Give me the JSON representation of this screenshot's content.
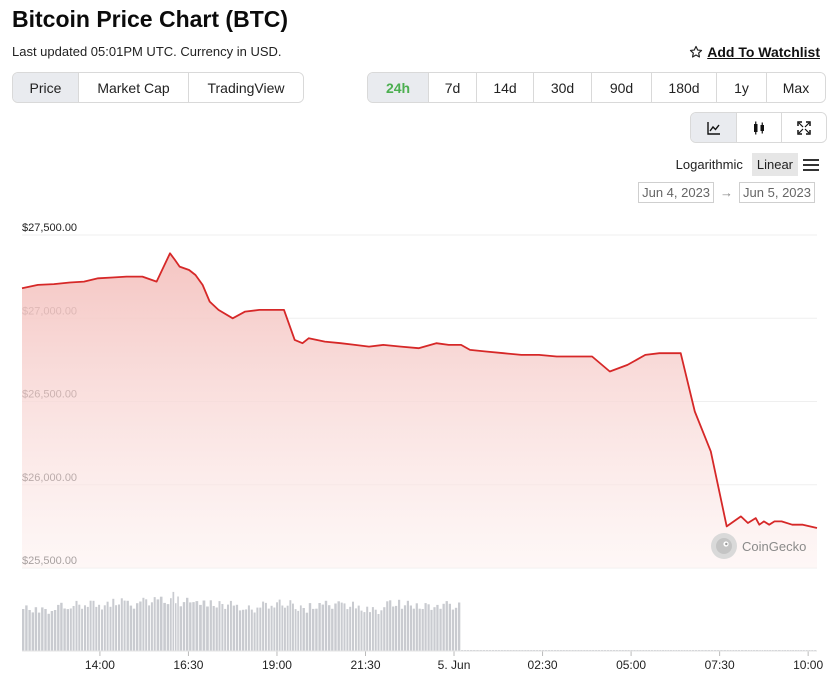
{
  "header": {
    "title": "Bitcoin Price Chart (BTC)",
    "subtitle": "Last updated 05:01PM UTC. Currency in USD.",
    "watchlist_label": "Add To Watchlist"
  },
  "view_tabs": [
    "Price",
    "Market Cap",
    "TradingView"
  ],
  "range_tabs": [
    "24h",
    "7d",
    "14d",
    "30d",
    "90d",
    "180d",
    "1y",
    "Max"
  ],
  "chart_type_buttons": [
    "line-chart-icon",
    "candlestick-icon",
    "fullscreen-icon"
  ],
  "scale": {
    "log_label": "Logarithmic",
    "linear_label": "Linear"
  },
  "dates": {
    "from": "Jun 4, 2023",
    "arrow": "→",
    "to": "Jun 5, 2023"
  },
  "watermark": "CoinGecko",
  "colors": {
    "line": "#d62828",
    "fill_top": "#f4c2bf",
    "volume": "#c9cbd0",
    "accent_green": "#4caf50"
  },
  "chart_data": {
    "type": "area",
    "title": "Bitcoin Price Chart (BTC)",
    "currency": "USD",
    "ylim": [
      25500,
      27500
    ],
    "y_ticks": [
      27500,
      27000,
      26500,
      26000,
      25500
    ],
    "y_tick_labels": [
      "$27,500.00",
      "$27,000.00",
      "$26,500.00",
      "$26,000.00",
      "$25,500.00"
    ],
    "xlim": [
      11.8,
      34.25
    ],
    "x_ticks": [
      14,
      16.5,
      19,
      21.5,
      24,
      26.5,
      29,
      31.5,
      34
    ],
    "x_tick_labels": [
      "14:00",
      "16:30",
      "19:00",
      "21:30",
      "5. Jun",
      "02:30",
      "05:00",
      "07:30",
      "10:00"
    ],
    "series": [
      {
        "name": "Price",
        "x": [
          11.8,
          12.25,
          12.7,
          13.15,
          13.55,
          13.95,
          14.35,
          14.75,
          15.2,
          15.6,
          15.98,
          16.12,
          16.25,
          16.52,
          16.7,
          16.9,
          17.1,
          17.35,
          17.75,
          18.1,
          18.5,
          18.9,
          19.2,
          19.5,
          19.72,
          19.9,
          20.35,
          20.8,
          21.2,
          21.6,
          22.0,
          22.5,
          23.0,
          23.5,
          23.85,
          24.2,
          24.45,
          24.9,
          25.4,
          25.9,
          26.4,
          26.9,
          27.4,
          27.9,
          28.4,
          28.9,
          29.4,
          29.8,
          30.1,
          30.4,
          30.8,
          31.25,
          31.7,
          32.1,
          32.3,
          32.52,
          32.62,
          32.75,
          32.9,
          33.05,
          33.25,
          33.55,
          33.85,
          34.25
        ],
        "values": [
          27180,
          27200,
          27205,
          27215,
          27220,
          27240,
          27245,
          27250,
          27250,
          27220,
          27390,
          27350,
          27310,
          27290,
          27260,
          27200,
          27100,
          27050,
          27000,
          27040,
          27050,
          27050,
          27050,
          26870,
          26850,
          26880,
          26860,
          26850,
          26840,
          26830,
          26840,
          26830,
          26820,
          26850,
          26840,
          26840,
          26810,
          26800,
          26790,
          26780,
          26780,
          26770,
          26770,
          26770,
          26680,
          26720,
          26780,
          26790,
          26790,
          26790,
          26440,
          26200,
          25750,
          25810,
          25770,
          25800,
          25760,
          25780,
          25760,
          25780,
          25780,
          25760,
          25760,
          25740
        ],
        "volume": [
          0.6,
          0.58,
          0.64,
          0.66,
          0.68,
          0.65,
          0.7,
          0.66,
          0.71,
          0.72,
          0.78,
          0.74,
          0.7,
          0.74,
          0.72,
          0.69,
          0.67,
          0.66,
          0.62,
          0.6,
          0.66,
          0.68,
          0.67,
          0.62,
          0.6,
          0.64,
          0.66,
          0.65,
          0.6,
          0.58,
          0.68,
          0.66,
          0.64,
          0.66,
          0.64,
          0.01,
          0.01,
          0.01,
          0.01,
          0.01,
          0.01,
          0.01,
          0.01,
          0.01,
          0.01,
          0.01,
          0.01,
          0.01,
          0.01,
          0.01,
          0.01,
          0.01,
          0.01,
          0.01,
          0.01,
          0.01,
          0.01,
          0.01,
          0.01,
          0.01,
          0.01,
          0.01,
          0.01,
          0.01
        ]
      }
    ]
  }
}
